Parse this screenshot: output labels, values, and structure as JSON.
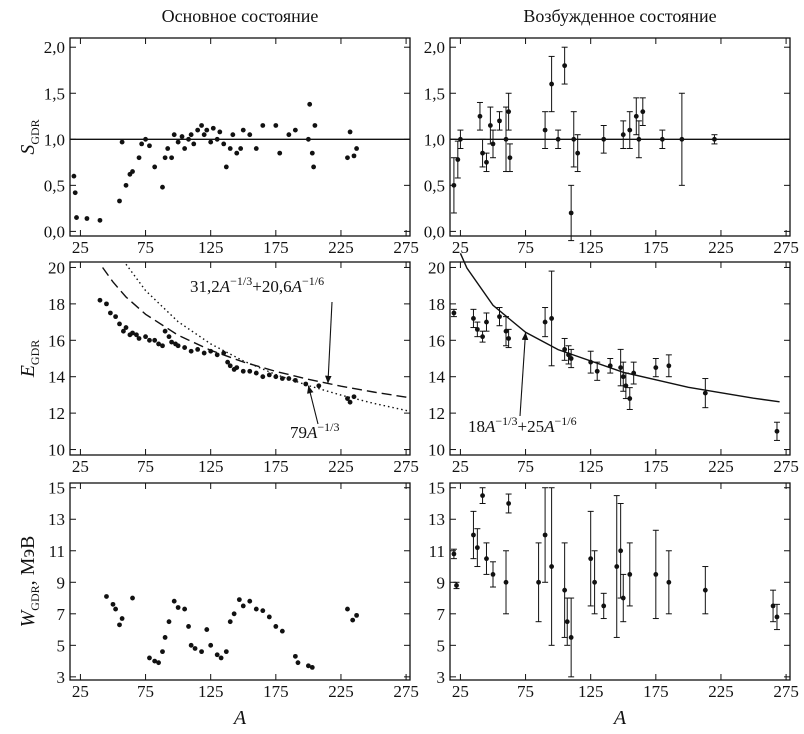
{
  "column_titles": [
    "Основное состояние",
    "Возбужденное состояние"
  ],
  "chart_data": [
    {
      "type": "scatter",
      "xlim": [
        17,
        278
      ],
      "ylim": [
        -0.05,
        2.1
      ],
      "xticks": [
        25,
        75,
        125,
        175,
        225,
        275
      ],
      "yticks": [
        {
          "value": 0,
          "label": "0,0"
        },
        {
          "value": 0.5,
          "label": "0,5"
        },
        {
          "value": 1,
          "label": "1,0"
        },
        {
          "value": 1.5,
          "label": "1,5"
        },
        {
          "value": 2,
          "label": "2,0"
        }
      ],
      "reference_line": 1,
      "color": "#111111",
      "ylabel_parts": [
        {
          "text": "S",
          "style": "italic"
        },
        {
          "text": "GDR",
          "style": "sub"
        }
      ],
      "x": [
        20,
        21,
        22,
        30,
        40,
        55,
        57,
        60,
        63,
        65,
        70,
        72,
        75,
        78,
        82,
        88,
        90,
        92,
        95,
        97,
        100,
        103,
        105,
        108,
        110,
        112,
        115,
        118,
        120,
        122,
        125,
        127,
        130,
        132,
        135,
        137,
        140,
        142,
        145,
        148,
        150,
        155,
        160,
        165,
        175,
        178,
        185,
        190,
        200,
        201,
        203,
        204,
        205,
        230,
        232,
        235,
        237
      ],
      "values": [
        0.6,
        0.42,
        0.15,
        0.14,
        0.12,
        0.33,
        0.97,
        0.5,
        0.62,
        0.65,
        0.8,
        0.95,
        1.0,
        0.93,
        0.7,
        0.48,
        0.8,
        0.9,
        0.8,
        1.05,
        0.97,
        1.03,
        0.9,
        1.0,
        1.05,
        0.95,
        1.1,
        1.15,
        1.05,
        1.1,
        0.97,
        1.12,
        1.0,
        1.08,
        0.95,
        0.7,
        0.9,
        1.05,
        0.85,
        0.9,
        1.1,
        1.05,
        0.9,
        1.15,
        1.15,
        0.85,
        1.05,
        1.1,
        1.0,
        1.38,
        0.85,
        0.7,
        1.15,
        0.8,
        1.08,
        0.82,
        0.9
      ]
    },
    {
      "type": "scatter",
      "xlim": [
        17,
        278
      ],
      "ylim": [
        -0.05,
        2.1
      ],
      "xticks": [
        25,
        75,
        125,
        175,
        225,
        275
      ],
      "yticks": [
        {
          "value": 0,
          "label": "0,0"
        },
        {
          "value": 0.5,
          "label": "0,5"
        },
        {
          "value": 1,
          "label": "1,0"
        },
        {
          "value": 1.5,
          "label": "1,5"
        },
        {
          "value": 2,
          "label": "2,0"
        }
      ],
      "reference_line": 1,
      "color": "#111111",
      "x": [
        20,
        23,
        25,
        40,
        42,
        45,
        48,
        50,
        55,
        60,
        62,
        63,
        90,
        95,
        100,
        105,
        110,
        112,
        115,
        135,
        150,
        155,
        160,
        162,
        165,
        180,
        195,
        220
      ],
      "values": [
        0.5,
        0.78,
        1.0,
        1.25,
        0.85,
        0.75,
        1.15,
        0.95,
        1.2,
        1.0,
        1.3,
        0.8,
        1.1,
        1.6,
        1.0,
        1.8,
        0.2,
        1.0,
        0.85,
        1.0,
        1.05,
        1.1,
        1.25,
        1.0,
        1.3,
        1.0,
        1.0,
        1.0
      ],
      "errors": [
        0.3,
        0.2,
        0.1,
        0.15,
        0.15,
        0.1,
        0.2,
        0.15,
        0.1,
        0.35,
        0.2,
        0.15,
        0.2,
        0.3,
        0.1,
        0.2,
        0.3,
        0.3,
        0.2,
        0.15,
        0.15,
        0.2,
        0.2,
        0.2,
        0.15,
        0.1,
        0.5,
        0.05
      ]
    },
    {
      "type": "scatter",
      "xlim": [
        17,
        278
      ],
      "ylim": [
        9.7,
        20.3
      ],
      "xticks": [
        25,
        75,
        125,
        175,
        225,
        275
      ],
      "yticks": [
        10,
        12,
        14,
        16,
        18,
        20
      ],
      "color": "#111111",
      "ylabel_parts": [
        {
          "text": "E",
          "style": "italic"
        },
        {
          "text": "GDR",
          "style": "sub"
        }
      ],
      "x": [
        40,
        45,
        48,
        52,
        55,
        58,
        60,
        63,
        65,
        68,
        70,
        75,
        78,
        82,
        85,
        88,
        90,
        93,
        95,
        98,
        100,
        105,
        110,
        115,
        120,
        125,
        130,
        135,
        138,
        140,
        143,
        145,
        150,
        155,
        160,
        165,
        170,
        175,
        180,
        185,
        190,
        198,
        208,
        230,
        232,
        235
      ],
      "values": [
        18.2,
        18.0,
        17.5,
        17.3,
        16.9,
        16.5,
        16.7,
        16.3,
        16.4,
        16.3,
        16.1,
        16.2,
        16.0,
        16.0,
        15.8,
        15.7,
        16.5,
        16.2,
        15.9,
        15.8,
        15.7,
        15.6,
        15.4,
        15.5,
        15.3,
        15.4,
        15.2,
        15.3,
        14.8,
        14.6,
        14.4,
        14.5,
        14.3,
        14.3,
        14.2,
        14.0,
        14.1,
        14.0,
        13.9,
        13.9,
        13.8,
        13.6,
        13.5,
        12.8,
        12.6,
        12.9
      ],
      "curves": [
        {
          "style": "dashed",
          "label_parts": [
            {
              "text": "31,2",
              "style": "normal"
            },
            {
              "text": "A",
              "style": "italic"
            },
            {
              "text": "−1/3",
              "style": "sup"
            },
            {
              "text": "+20,6",
              "style": "normal"
            },
            {
              "text": "A",
              "style": "italic"
            },
            {
              "text": "−1/6",
              "style": "sup"
            }
          ],
          "x": [
            42,
            50,
            60,
            75,
            100,
            125,
            150,
            175,
            200,
            215,
            225,
            250,
            278
          ],
          "y": [
            20.0,
            19.2,
            18.38,
            17.43,
            16.28,
            15.45,
            14.81,
            14.29,
            13.86,
            13.63,
            13.48,
            13.16,
            12.84
          ]
        },
        {
          "style": "dotted",
          "label_parts": [
            {
              "text": "79",
              "style": "normal"
            },
            {
              "text": "A",
              "style": "italic"
            },
            {
              "text": "−1/3",
              "style": "sup"
            }
          ],
          "x": [
            60,
            75,
            100,
            125,
            150,
            175,
            200,
            225,
            250,
            278
          ],
          "y": [
            20.18,
            18.73,
            17.02,
            15.8,
            14.87,
            14.12,
            13.51,
            12.99,
            12.54,
            12.1
          ]
        }
      ]
    },
    {
      "type": "scatter",
      "xlim": [
        17,
        278
      ],
      "ylim": [
        9.7,
        20.3
      ],
      "xticks": [
        25,
        75,
        125,
        175,
        225,
        275
      ],
      "yticks": [
        10,
        12,
        14,
        16,
        18,
        20
      ],
      "color": "#111111",
      "x": [
        20,
        35,
        38,
        42,
        45,
        55,
        60,
        62,
        90,
        95,
        105,
        108,
        110,
        125,
        130,
        140,
        148,
        150,
        152,
        155,
        158,
        175,
        185,
        213,
        268
      ],
      "values": [
        17.5,
        17.2,
        16.6,
        16.2,
        17.0,
        17.3,
        16.5,
        16.1,
        17.0,
        17.2,
        15.5,
        15.2,
        15.0,
        14.8,
        14.3,
        14.6,
        14.5,
        14.0,
        13.5,
        12.8,
        14.2,
        14.5,
        14.6,
        13.1,
        11.0
      ],
      "errors": [
        0.2,
        0.5,
        0.4,
        0.3,
        0.5,
        0.5,
        0.8,
        0.5,
        0.8,
        2.6,
        0.6,
        0.5,
        0.5,
        0.6,
        0.5,
        0.4,
        1.0,
        0.8,
        0.7,
        0.6,
        0.6,
        0.5,
        0.6,
        0.8,
        0.5
      ],
      "curves": [
        {
          "style": "solid",
          "label_parts": [
            {
              "text": "18",
              "style": "normal"
            },
            {
              "text": "A",
              "style": "italic"
            },
            {
              "text": "−1/3",
              "style": "sup"
            },
            {
              "text": "+25",
              "style": "normal"
            },
            {
              "text": "A",
              "style": "italic"
            },
            {
              "text": "−1/6",
              "style": "sup"
            }
          ],
          "x": [
            25,
            30,
            50,
            75,
            100,
            150,
            200,
            250,
            270
          ],
          "y": [
            20.78,
            19.97,
            17.92,
            16.44,
            15.49,
            14.24,
            13.42,
            12.82,
            12.62
          ]
        }
      ]
    },
    {
      "type": "scatter",
      "xlim": [
        17,
        278
      ],
      "ylim": [
        2.8,
        15.3
      ],
      "xticks": [
        25,
        75,
        125,
        175,
        225,
        275
      ],
      "yticks": [
        3,
        5,
        7,
        9,
        11,
        13,
        15
      ],
      "color": "#111111",
      "ylabel_parts": [
        {
          "text": "W",
          "style": "italic"
        },
        {
          "text": "GDR",
          "style": "sub"
        },
        {
          "text": ", МэВ",
          "style": "normal"
        }
      ],
      "xlabel_parts": [
        {
          "text": "A",
          "style": "italic"
        }
      ],
      "x": [
        45,
        50,
        52,
        55,
        57,
        65,
        78,
        82,
        85,
        88,
        90,
        93,
        97,
        100,
        105,
        108,
        110,
        113,
        118,
        122,
        125,
        130,
        133,
        137,
        140,
        143,
        147,
        150,
        155,
        160,
        165,
        170,
        175,
        180,
        190,
        192,
        200,
        203,
        230,
        234,
        237
      ],
      "values": [
        8.1,
        7.6,
        7.3,
        6.3,
        6.7,
        8.0,
        4.2,
        4.0,
        3.9,
        4.6,
        5.5,
        6.5,
        7.8,
        7.4,
        7.3,
        6.2,
        5.0,
        4.8,
        4.6,
        6.0,
        5.0,
        4.4,
        4.2,
        4.6,
        6.5,
        7.0,
        7.9,
        7.5,
        7.8,
        7.3,
        7.2,
        6.8,
        6.2,
        5.9,
        4.3,
        3.9,
        3.7,
        3.6,
        7.3,
        6.6,
        6.9
      ]
    },
    {
      "type": "scatter",
      "xlim": [
        17,
        278
      ],
      "ylim": [
        2.8,
        15.3
      ],
      "xticks": [
        25,
        75,
        125,
        175,
        225,
        275
      ],
      "yticks": [
        3,
        5,
        7,
        9,
        11,
        13,
        15
      ],
      "color": "#111111",
      "xlabel_parts": [
        {
          "text": "A",
          "style": "italic"
        }
      ],
      "x": [
        20,
        22,
        35,
        38,
        42,
        45,
        50,
        60,
        62,
        85,
        90,
        95,
        105,
        107,
        110,
        125,
        128,
        135,
        145,
        148,
        150,
        155,
        175,
        185,
        213,
        265,
        268
      ],
      "values": [
        10.8,
        8.8,
        12.0,
        11.2,
        14.5,
        10.5,
        9.5,
        9.0,
        14.0,
        9.0,
        12.0,
        10.0,
        8.5,
        6.5,
        5.5,
        10.5,
        9.0,
        7.5,
        10.0,
        11.0,
        8.0,
        9.5,
        9.5,
        9.0,
        8.5,
        7.5,
        6.8
      ],
      "errors": [
        0.3,
        0.2,
        1.5,
        1.2,
        0.5,
        1.0,
        0.8,
        2.0,
        0.6,
        2.5,
        3.0,
        5.0,
        3.0,
        1.5,
        2.5,
        3.0,
        2.0,
        0.8,
        4.5,
        3.0,
        1.5,
        2.0,
        2.8,
        2.0,
        1.5,
        1.0,
        0.8
      ]
    }
  ]
}
